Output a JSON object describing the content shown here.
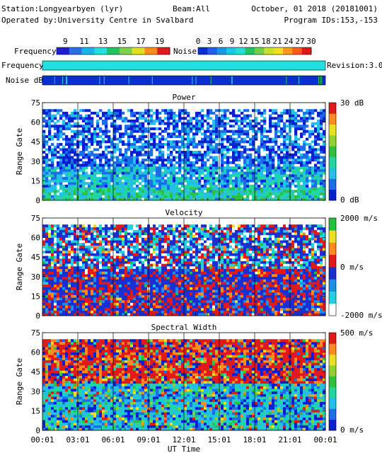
{
  "header": {
    "station": "Station:Longyearbyen (lyr)",
    "operated": "Operated by:University Centre in Svalbard",
    "beam": "Beam:All",
    "date": "October, 01 2018 (20181001)",
    "program": "Program IDs:153,-153"
  },
  "legend": {
    "frequency_label": "Frequency",
    "frequency_ticks": [
      "9",
      "11",
      "13",
      "15",
      "17",
      "19"
    ],
    "frequency_colors": [
      "#1f1fd0",
      "#2a6ee8",
      "#19b4e6",
      "#22e0e0",
      "#22c060",
      "#7ed04a",
      "#e0e020",
      "#ff8a1e",
      "#e01a1a"
    ],
    "noise_label": "Noise",
    "noise_ticks": [
      "0",
      "3",
      "6",
      "9",
      "12",
      "15",
      "18",
      "21",
      "24",
      "27",
      "30"
    ],
    "noise_colors": [
      "#0a2fd0",
      "#1f5fe8",
      "#1a96e6",
      "#1ac8e6",
      "#22e0d0",
      "#22c060",
      "#6ed04a",
      "#c8e02a",
      "#f0e020",
      "#ff9a1e",
      "#ff5a1a",
      "#e01a1a"
    ]
  },
  "strips": {
    "frequency_label": "Frequency",
    "frequency_color": "#22e0e0",
    "revision": "Revision:3.0",
    "noise_label": "Noise dB",
    "noise_color": "#0a2fd0"
  },
  "chart_data": [
    {
      "type": "heatmap",
      "title": "Power",
      "ylabel": "Range Gate",
      "xlabel": "",
      "ylim": [
        0,
        75
      ],
      "yticks": [
        "0",
        "15",
        "30",
        "45",
        "60",
        "75"
      ],
      "xticks": [],
      "colorbar": {
        "min_label": "0 dB",
        "max_label": "30 dB",
        "min": 0,
        "max": 30,
        "colors": [
          "#0a1fd0",
          "#1a6ee8",
          "#22c0e6",
          "#22d6a0",
          "#2ec040",
          "#90d030",
          "#e8e020",
          "#ff8a1e",
          "#e01a1a"
        ]
      },
      "data_top_gate": 70,
      "bands": [
        {
          "gates": [
            0,
            10
          ],
          "level": 0.45
        },
        {
          "gates": [
            10,
            25
          ],
          "level": 0.38
        },
        {
          "gates": [
            25,
            35
          ],
          "level": 0.25
        },
        {
          "gates": [
            35,
            70
          ],
          "level": 0.18
        }
      ]
    },
    {
      "type": "heatmap",
      "title": "Velocity",
      "ylabel": "Range Gate",
      "xlabel": "",
      "ylim": [
        0,
        75
      ],
      "yticks": [
        "0",
        "15",
        "30",
        "45",
        "60",
        "75"
      ],
      "xticks": [],
      "colorbar": {
        "min_label": "-2000 m/s",
        "mid_label": "0 m/s",
        "max_label": "2000 m/s",
        "min": -2000,
        "max": 2000,
        "colors": [
          "#ffffff",
          "#22d0e0",
          "#1a8ee8",
          "#1a2fd0",
          "#e01a1a",
          "#ff8a1e",
          "#e8e020",
          "#22c040"
        ]
      },
      "data_top_gate": 70,
      "bands": [
        {
          "gates": [
            0,
            35
          ],
          "level": 0.5
        },
        {
          "gates": [
            35,
            70
          ],
          "level": 0.45
        }
      ]
    },
    {
      "type": "heatmap",
      "title": "Spectral Width",
      "ylabel": "Range Gate",
      "xlabel": "UT Time",
      "ylim": [
        0,
        75
      ],
      "yticks": [
        "0",
        "15",
        "30",
        "45",
        "60",
        "75"
      ],
      "xticks": [
        "00:01",
        "03:01",
        "06:01",
        "09:01",
        "12:01",
        "15:01",
        "18:01",
        "21:01",
        "00:01"
      ],
      "colorbar": {
        "min_label": "0 m/s",
        "max_label": "500 m/s",
        "min": 0,
        "max": 500,
        "colors": [
          "#0a1fd0",
          "#1a6ee8",
          "#22c0e6",
          "#22d6a0",
          "#2ec040",
          "#90d030",
          "#e8e020",
          "#ff8a1e",
          "#e01a1a"
        ]
      },
      "data_top_gate": 70,
      "bands": [
        {
          "gates": [
            0,
            35
          ],
          "level": 0.5
        },
        {
          "gates": [
            35,
            70
          ],
          "level": 0.7
        }
      ]
    }
  ]
}
